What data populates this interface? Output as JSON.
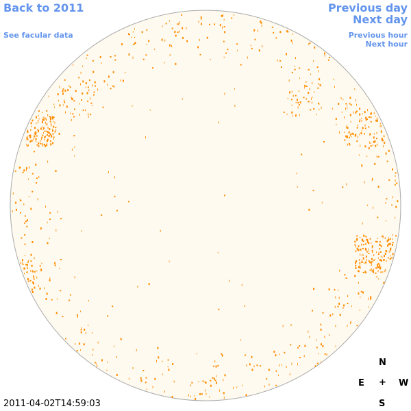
{
  "nav": {
    "back_label": "Back to 2011",
    "facular_label": "See facular data",
    "prev_day_label": "Previous day",
    "next_day_label": "Next day",
    "prev_hour_label": "Previous hour",
    "next_hour_label": "Next hour"
  },
  "compass": {
    "north": "N",
    "east": "E",
    "center": "+",
    "west": "W",
    "south": "S"
  },
  "timestamp": "2011-04-02T14:59:03",
  "colors": {
    "disk_fill": "#fffaf0",
    "disk_outline": "#a9a9a9",
    "facula": "#ff8c00",
    "link": "#6495ed"
  }
}
